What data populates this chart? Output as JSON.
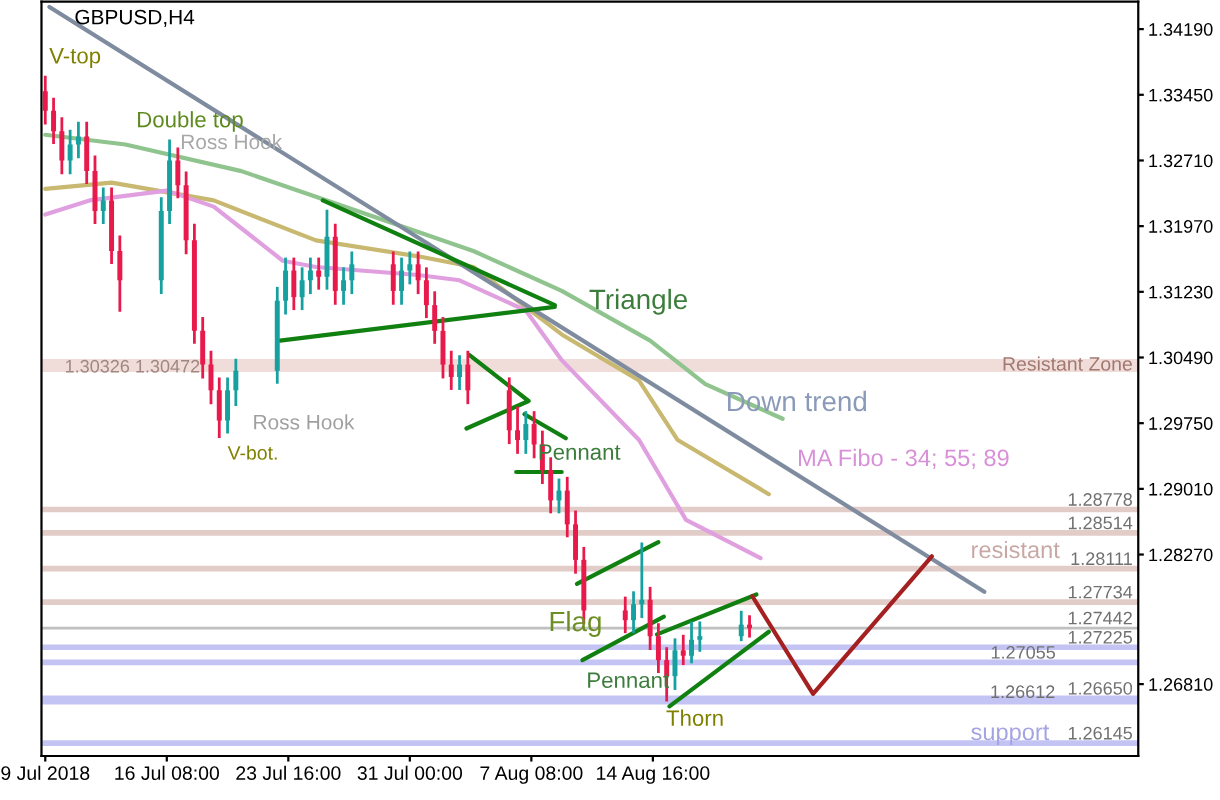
{
  "chart_data": {
    "type": "candlestick",
    "title": "GBPUSD,H4",
    "x": [
      "2018-07-09T00:00",
      "2018-07-09T12:00",
      "2018-07-10T00:00",
      "2018-07-10T12:00",
      "2018-07-11T00:00",
      "2018-07-11T12:00",
      "2018-07-12T00:00",
      "2018-07-12T12:00",
      "2018-07-13T00:00",
      "2018-07-13T12:00",
      "2018-07-16T00:00",
      "2018-07-16T12:00",
      "2018-07-17T00:00",
      "2018-07-17T12:00",
      "2018-07-18T00:00",
      "2018-07-18T12:00",
      "2018-07-19T00:00",
      "2018-07-19T12:00",
      "2018-07-20T00:00",
      "2018-07-20T12:00",
      "2018-07-23T00:00",
      "2018-07-23T12:00",
      "2018-07-24T00:00",
      "2018-07-24T12:00",
      "2018-07-25T00:00",
      "2018-07-25T12:00",
      "2018-07-26T00:00",
      "2018-07-26T12:00",
      "2018-07-27T00:00",
      "2018-07-27T12:00",
      "2018-07-30T00:00",
      "2018-07-30T12:00",
      "2018-07-31T00:00",
      "2018-07-31T12:00",
      "2018-08-01T00:00",
      "2018-08-01T12:00",
      "2018-08-02T00:00",
      "2018-08-02T12:00",
      "2018-08-03T00:00",
      "2018-08-03T12:00",
      "2018-08-06T00:00",
      "2018-08-06T12:00",
      "2018-08-07T00:00",
      "2018-08-07T12:00",
      "2018-08-08T00:00",
      "2018-08-08T12:00",
      "2018-08-09T00:00",
      "2018-08-09T12:00",
      "2018-08-10T00:00",
      "2018-08-10T12:00",
      "2018-08-13T00:00",
      "2018-08-13T12:00",
      "2018-08-14T00:00",
      "2018-08-14T12:00",
      "2018-08-15T00:00",
      "2018-08-15T12:00",
      "2018-08-16T00:00",
      "2018-08-16T12:00",
      "2018-08-17T00:00",
      "2018-08-17T12:00",
      "2018-08-20T00:00",
      "2018-08-20T12:00"
    ],
    "ohlc": [
      [
        1.3349,
        1.3365,
        1.3313,
        1.3327
      ],
      [
        1.3327,
        1.334,
        1.3291,
        1.3304
      ],
      [
        1.3304,
        1.3318,
        1.3257,
        1.3271
      ],
      [
        1.3271,
        1.3304,
        1.3257,
        1.3289
      ],
      [
        1.3289,
        1.3313,
        1.3275,
        1.3298
      ],
      [
        1.3298,
        1.3313,
        1.3246,
        1.3259
      ],
      [
        1.3259,
        1.3275,
        1.3201,
        1.3214
      ],
      [
        1.3214,
        1.3239,
        1.3201,
        1.3226
      ],
      [
        1.3226,
        1.3239,
        1.3156,
        1.3169
      ],
      [
        1.3169,
        1.3185,
        1.3102,
        1.3136
      ],
      [
        1.3136,
        1.3228,
        1.3122,
        1.3214
      ],
      [
        1.3214,
        1.3293,
        1.3201,
        1.3271
      ],
      [
        1.3271,
        1.3284,
        1.323,
        1.3243
      ],
      [
        1.3243,
        1.3257,
        1.3167,
        1.3181
      ],
      [
        1.3181,
        1.3198,
        1.3066,
        1.3079
      ],
      [
        1.3079,
        1.3093,
        1.3027,
        1.3041
      ],
      [
        1.3041,
        1.3055,
        1.2998,
        1.3012
      ],
      [
        1.3012,
        1.3025,
        1.296,
        1.2978
      ],
      [
        1.2978,
        1.3025,
        1.2965,
        1.3012
      ],
      [
        1.3012,
        1.3046,
        1.2996,
        1.3034
      ],
      [
        1.3034,
        1.3127,
        1.3021,
        1.3113
      ],
      [
        1.3113,
        1.316,
        1.3099,
        1.3147
      ],
      [
        1.3147,
        1.316,
        1.3104,
        1.3117
      ],
      [
        1.3117,
        1.3149,
        1.3104,
        1.3136
      ],
      [
        1.3136,
        1.316,
        1.3122,
        1.3147
      ],
      [
        1.3147,
        1.316,
        1.3127,
        1.314
      ],
      [
        1.314,
        1.3214,
        1.3127,
        1.3185
      ],
      [
        1.3185,
        1.3198,
        1.311,
        1.3124
      ],
      [
        1.3124,
        1.3149,
        1.311,
        1.3136
      ],
      [
        1.3136,
        1.3167,
        1.3122,
        1.3154
      ],
      [
        1.3154,
        1.3167,
        1.311,
        1.3124
      ],
      [
        1.3124,
        1.316,
        1.311,
        1.3147
      ],
      [
        1.3147,
        1.3167,
        1.3133,
        1.3154
      ],
      [
        1.3154,
        1.3167,
        1.3122,
        1.3136
      ],
      [
        1.3136,
        1.3149,
        1.3095,
        1.3108
      ],
      [
        1.3108,
        1.3122,
        1.3066,
        1.3079
      ],
      [
        1.3079,
        1.3093,
        1.3027,
        1.3041
      ],
      [
        1.3041,
        1.3055,
        1.3014,
        1.3027
      ],
      [
        1.3027,
        1.305,
        1.3014,
        1.3041
      ],
      [
        1.3041,
        1.3055,
        1.2998,
        1.3012
      ],
      [
        1.3012,
        1.3025,
        1.2953,
        1.2967
      ],
      [
        1.2967,
        1.2992,
        1.2942,
        1.2956
      ],
      [
        1.2956,
        1.2987,
        1.2942,
        1.2974
      ],
      [
        1.2974,
        1.2987,
        1.2937,
        1.2951
      ],
      [
        1.2951,
        1.2965,
        1.2908,
        1.2922
      ],
      [
        1.2922,
        1.2935,
        1.2875,
        1.2888
      ],
      [
        1.2888,
        1.2911,
        1.2875,
        1.2899
      ],
      [
        1.2899,
        1.2913,
        1.2848,
        1.2861
      ],
      [
        1.2861,
        1.2875,
        1.2807,
        1.2821
      ],
      [
        1.2821,
        1.2834,
        1.275,
        1.2764
      ],
      [
        1.2764,
        1.2778,
        1.274,
        1.2753
      ],
      [
        1.2753,
        1.2784,
        1.274,
        1.2771
      ],
      [
        1.2771,
        1.2839,
        1.2757,
        1.2776
      ],
      [
        1.2776,
        1.2789,
        1.2721,
        1.2735
      ],
      [
        1.2735,
        1.2748,
        1.2695,
        1.2708
      ],
      [
        1.2708,
        1.2721,
        1.2663,
        1.269
      ],
      [
        1.269,
        1.2731,
        1.2676,
        1.2719
      ],
      [
        1.2719,
        1.2735,
        1.2704,
        1.2713
      ],
      [
        1.2713,
        1.275,
        1.2706,
        1.2731
      ],
      [
        1.2731,
        1.275,
        1.2719,
        1.2735
      ],
      [
        1.2735,
        1.2762,
        1.2731,
        1.2748
      ],
      [
        1.2748,
        1.2757,
        1.2735,
        1.2744
      ]
    ],
    "series": [
      {
        "type": "line",
        "color": "#8fc48f",
        "x": [
          "2018-07-09T00:00",
          "2018-07-13T20:00",
          "2018-07-20T20:00",
          "2018-07-27T20:00",
          "2018-08-03T20:00",
          "2018-08-09T04:00",
          "2018-08-14T12:00",
          "2018-08-17T20:00",
          "2018-08-22T12:00"
        ],
        "values": [
          1.33,
          1.3289,
          1.3259,
          1.3214,
          1.3169,
          1.3124,
          1.3068,
          1.3019,
          1.298
        ]
      },
      {
        "type": "line",
        "color": "#c8b870",
        "x": [
          "2018-07-09T00:00",
          "2018-07-13T00:00",
          "2018-07-19T04:00",
          "2018-07-25T08:00",
          "2018-07-31T12:00",
          "2018-08-03T20:00",
          "2018-08-09T04:00",
          "2018-08-13T20:00",
          "2018-08-16T04:00",
          "2018-08-21T16:00"
        ],
        "values": [
          1.3239,
          1.3246,
          1.3226,
          1.3181,
          1.3163,
          1.3151,
          1.3075,
          1.3023,
          1.2956,
          1.2895
        ]
      },
      {
        "type": "line",
        "color": "#e0a0e0",
        "x": [
          "2018-07-09T00:00",
          "2018-07-11T16:00",
          "2018-07-16T08:00",
          "2018-07-19T04:00",
          "2018-07-23T08:00",
          "2018-07-25T08:00",
          "2018-07-31T12:00",
          "2018-08-03T00:00",
          "2018-08-07T00:00",
          "2018-08-09T04:00",
          "2018-08-13T20:00",
          "2018-08-16T16:00",
          "2018-08-21T04:00"
        ],
        "values": [
          1.321,
          1.3226,
          1.3237,
          1.3219,
          1.3158,
          1.3151,
          1.3142,
          1.3136,
          1.3102,
          1.3046,
          1.2956,
          1.2866,
          1.2823
        ]
      },
      {
        "type": "line",
        "color": "#7f8c9f",
        "x": [
          "2018-07-09T06:00",
          "2018-09-03T16:00"
        ],
        "values": [
          1.3444,
          1.2785
        ]
      },
      {
        "type": "line",
        "color": "#108010",
        "x": [
          "2018-07-25T18:00",
          "2018-08-08T18:00"
        ],
        "values": [
          1.3226,
          1.3108
        ]
      },
      {
        "type": "line",
        "color": "#108010",
        "x": [
          "2018-07-23T04:00",
          "2018-08-08T18:00"
        ],
        "values": [
          1.3068,
          1.3106
        ]
      },
      {
        "type": "line",
        "color": "#108010",
        "x": [
          "2018-08-03T14:00",
          "2018-08-07T04:00",
          "2018-08-03T10:00"
        ],
        "values": [
          1.3052,
          1.3,
          1.2969
        ]
      },
      {
        "type": "line",
        "color": "#108010",
        "x": [
          "2018-08-06T22:00",
          "2018-08-09T10:00"
        ],
        "values": [
          1.2985,
          1.2958
        ]
      },
      {
        "type": "line",
        "color": "#108010",
        "x": [
          "2018-08-06T10:00",
          "2018-08-09T04:00"
        ],
        "values": [
          1.292,
          1.292
        ]
      },
      {
        "type": "line",
        "color": "#108010",
        "x": [
          "2018-08-10T02:00",
          "2018-08-15T00:00"
        ],
        "values": [
          1.2794,
          1.2841
        ]
      },
      {
        "type": "line",
        "color": "#108010",
        "x": [
          "2018-08-10T10:00",
          "2018-08-15T08:00"
        ],
        "values": [
          1.2708,
          1.2757
        ]
      },
      {
        "type": "line",
        "color": "#108010",
        "x": [
          "2018-08-14T22:00",
          "2018-08-20T22:00"
        ],
        "values": [
          1.2737,
          1.2782
        ]
      },
      {
        "type": "line",
        "color": "#108010",
        "x": [
          "2018-08-15T16:00",
          "2018-08-21T16:00"
        ],
        "values": [
          1.2656,
          1.274
        ]
      },
      {
        "type": "line",
        "color": "#a52020",
        "x": [
          "2018-08-20T16:00",
          "2018-08-24T08:00",
          "2018-08-31T12:00"
        ],
        "values": [
          1.278,
          1.267,
          1.2825
        ]
      }
    ],
    "ref_lines": [
      {
        "axis": "y",
        "value": 1.28778,
        "label": "1.28778",
        "color": "#e2ccc8"
      },
      {
        "axis": "y",
        "value": 1.28514,
        "label": "1.28514",
        "color": "#e2ccc8"
      },
      {
        "axis": "y",
        "value": 1.28111,
        "label": "1.28111",
        "color": "#e2ccc8"
      },
      {
        "axis": "y",
        "value": 1.27734,
        "label": "1.27734",
        "color": "#e2ccc8"
      },
      {
        "axis": "y",
        "value": 1.27442,
        "label": "1.27442",
        "color": "#c0c0c0"
      },
      {
        "axis": "y",
        "value": 1.27225,
        "label": "1.27225",
        "color": "#c4c4f4"
      },
      {
        "axis": "y",
        "value": 1.27055,
        "label": "1.27055",
        "color": "#c4c4f4"
      },
      {
        "axis": "y",
        "value": 1.2665,
        "label": "1.26650",
        "color": "#c4c4f4"
      },
      {
        "axis": "y",
        "value": 1.26612,
        "label": "1.26612",
        "color": "#c4c4f4"
      },
      {
        "axis": "y",
        "value": 1.26145,
        "label": "1.26145",
        "color": "#c4c4f4"
      }
    ],
    "bands": [
      {
        "axis": "y",
        "from": 1.30326,
        "to": 1.30472,
        "label": "Resistant Zone",
        "color": "#f0dcd8"
      }
    ],
    "annotations": [
      "V-top",
      {
        "text": "Double top",
        "x": "2018-07-16T12:00",
        "y": 1.3293
      },
      "Ross Hook",
      {
        "text": "Ross Hook",
        "x": "2018-07-20T12:00",
        "y": 1.2996
      },
      {
        "text": "V-bot.",
        "x": "2018-07-19T12:00",
        "y": 1.296
      },
      "Triangle",
      {
        "text": "Pennant",
        "x": "2018-08-09T04:00",
        "y": 1.292
      },
      "Down trend",
      "MA Fibo - 34; 55; 89",
      "Flag",
      {
        "text": "Pennant",
        "x": "2018-08-10T10:00",
        "y": 1.2708
      },
      "Thorn",
      "resistant",
      "support",
      "1.30326 1.30472"
    ],
    "xlim": [
      "2018-07-08T18:30",
      "2018-09-12T23:00"
    ],
    "xticks": [
      {
        "value": "2018-07-09T00:00",
        "label": "9 Jul 2018"
      },
      {
        "value": "2018-07-16T08:00",
        "label": "16 Jul 08:00"
      },
      {
        "value": "2018-07-23T16:00",
        "label": "23 Jul 16:00"
      },
      {
        "value": "2018-07-31T00:00",
        "label": "31 Jul 00:00"
      },
      {
        "value": "2018-08-07T08:00",
        "label": "7 Aug 08:00"
      },
      {
        "value": "2018-08-14T16:00",
        "label": "14 Aug 16:00"
      }
    ],
    "ylim": [
      1.26,
      1.345
    ],
    "yticks": [
      {
        "value": 1.3419,
        "label": "1.34190"
      },
      {
        "value": 1.3345,
        "label": "1.33450"
      },
      {
        "value": 1.3271,
        "label": "1.32710"
      },
      {
        "value": 1.3197,
        "label": "1.31970"
      },
      {
        "value": 1.3123,
        "label": "1.31230"
      },
      {
        "value": 1.3049,
        "label": "1.30490"
      },
      {
        "value": 1.2975,
        "label": "1.29750"
      },
      {
        "value": 1.2901,
        "label": "1.29010"
      },
      {
        "value": 1.2827,
        "label": "1.28270"
      },
      {
        "value": 1.2681,
        "label": "1.26810"
      }
    ]
  }
}
